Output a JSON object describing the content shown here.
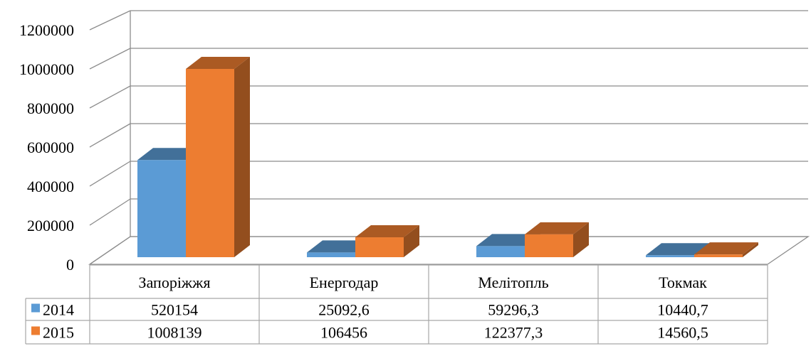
{
  "chart_data": {
    "type": "bar",
    "style": "3d-clustered-column-with-data-table",
    "categories": [
      "Запоріжжя",
      "Енергодар",
      "Мелітопль",
      "Токмак"
    ],
    "series": [
      {
        "name": "2014",
        "color": "#5b9bd5",
        "values": [
          520154,
          25092.6,
          59296.3,
          10440.7
        ],
        "labels": [
          "520154",
          "25092,6",
          "59296,3",
          "10440,7"
        ]
      },
      {
        "name": "2015",
        "color": "#ed7d31",
        "values": [
          1008139,
          106456,
          122377.3,
          14560.5
        ],
        "labels": [
          "1008139",
          "106456",
          "122377,3",
          "14560,5"
        ]
      }
    ],
    "ylim": [
      0,
      1200000
    ],
    "yticks": [
      0,
      200000,
      400000,
      600000,
      800000,
      1000000,
      1200000
    ],
    "ytick_labels": [
      "0",
      "200000",
      "400000",
      "600000",
      "800000",
      "1000000",
      "1200000"
    ],
    "grid": true,
    "legend": "data-table"
  }
}
